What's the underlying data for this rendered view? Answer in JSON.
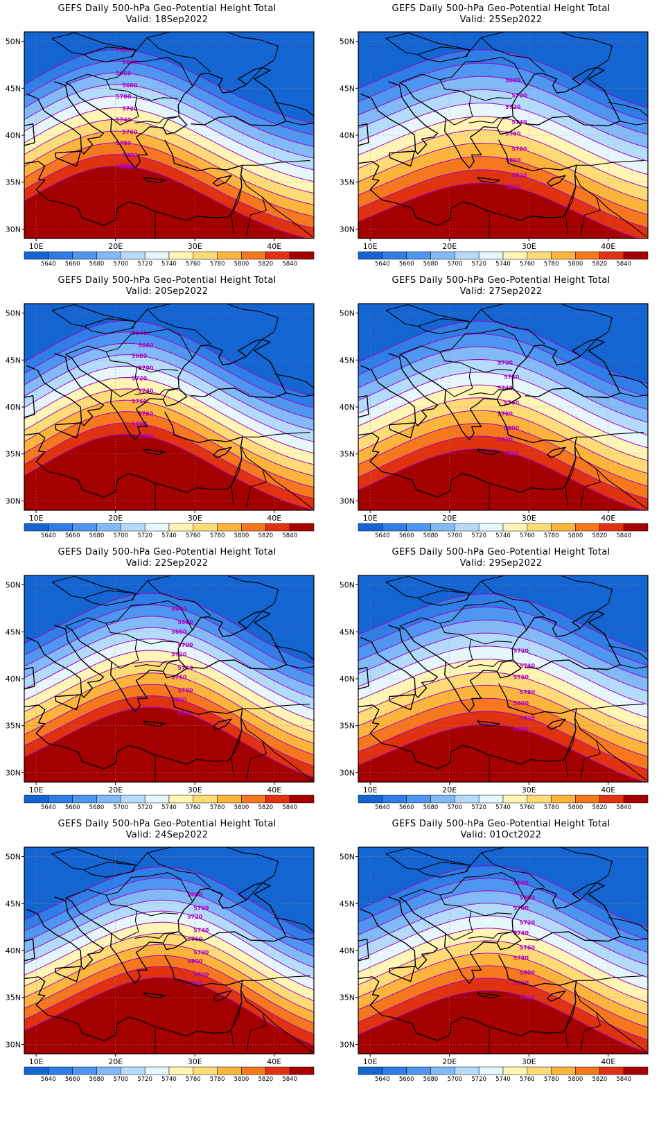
{
  "title": "GEFS Daily 500-hPa Geo-Potential Height Total",
  "valid_prefix": "Valid:",
  "lat_ticks": [
    "50N",
    "45N",
    "40N",
    "35N",
    "30N"
  ],
  "lon_ticks": [
    "10E",
    "20E",
    "30E",
    "40E"
  ],
  "colorbar": {
    "labels": [
      "5640",
      "5660",
      "5680",
      "5700",
      "5720",
      "5740",
      "5760",
      "5780",
      "5800",
      "5820",
      "5840"
    ],
    "colors": [
      "#1464d2",
      "#2e7ee6",
      "#4f96f0",
      "#82b9f7",
      "#b4dcfa",
      "#e6f6fb",
      "#fff5b4",
      "#fddc78",
      "#fbb43c",
      "#f5781e",
      "#e1320f",
      "#a50000"
    ]
  },
  "contour_color": "#a000c8",
  "panels": [
    {
      "valid": "18Sep2022",
      "ridge": 0.4,
      "trough_lon": 19,
      "labels": [
        "5620",
        "5640",
        "5660",
        "5680",
        "5700",
        "5720",
        "5740",
        "5760",
        "5780",
        "5800",
        "5820",
        "5840"
      ]
    },
    {
      "valid": "25Sep2022",
      "ridge": 0.7,
      "trough_lon": 26,
      "labels": [
        "5680",
        "5700",
        "5720",
        "5740",
        "5760",
        "5780",
        "5800",
        "5820",
        "5840"
      ]
    },
    {
      "valid": "20Sep2022",
      "ridge": 0.35,
      "trough_lon": 21,
      "labels": [
        "5640",
        "5660",
        "5680",
        "5700",
        "5720",
        "5740",
        "5760",
        "5780",
        "5800",
        "5820"
      ]
    },
    {
      "valid": "27Sep2022",
      "ridge": 0.6,
      "trough_lon": 25,
      "labels": [
        "5700",
        "5720",
        "5740",
        "5760",
        "5780",
        "5800",
        "5820",
        "5840"
      ]
    },
    {
      "valid": "22Sep2022",
      "ridge": 0.35,
      "trough_lon": 26,
      "labels": [
        "5640",
        "5660",
        "5680",
        "5700",
        "5720",
        "5740",
        "5760",
        "5780",
        "5800",
        "5820"
      ]
    },
    {
      "valid": "29Sep2022",
      "ridge": 0.65,
      "trough_lon": 27,
      "labels": [
        "5720",
        "5740",
        "5760",
        "5780",
        "5800",
        "5820",
        "5840"
      ]
    },
    {
      "valid": "24Sep2022",
      "ridge": 0.3,
      "trough_lon": 28,
      "labels": [
        "5680",
        "5700",
        "5720",
        "5740",
        "5760",
        "5780",
        "5800",
        "5820",
        "5840"
      ]
    },
    {
      "valid": "01Oct2022",
      "ridge": 0.55,
      "trough_lon": 27,
      "labels": [
        "5660",
        "5680",
        "5700",
        "5720",
        "5740",
        "5760",
        "5780",
        "5800",
        "5820",
        "5840"
      ]
    }
  ]
}
